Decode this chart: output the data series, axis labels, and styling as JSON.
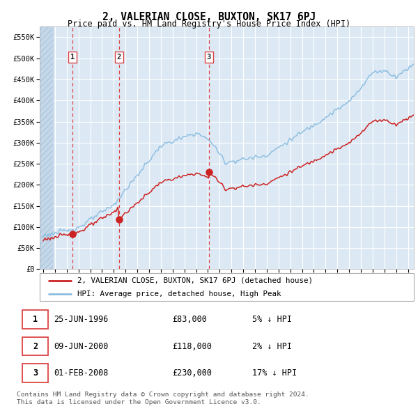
{
  "title": "2, VALERIAN CLOSE, BUXTON, SK17 6PJ",
  "subtitle": "Price paid vs. HM Land Registry's House Price Index (HPI)",
  "legend_line1": "2, VALERIAN CLOSE, BUXTON, SK17 6PJ (detached house)",
  "legend_line2": "HPI: Average price, detached house, High Peak",
  "transactions": [
    {
      "num": 1,
      "date": "25-JUN-1996",
      "price": 83000,
      "rel": "5% ↓ HPI",
      "x_year": 1996.48
    },
    {
      "num": 2,
      "date": "09-JUN-2000",
      "price": 118000,
      "rel": "2% ↓ HPI",
      "x_year": 2000.44
    },
    {
      "num": 3,
      "date": "01-FEB-2008",
      "price": 230000,
      "rel": "17% ↓ HPI",
      "x_year": 2008.08
    }
  ],
  "footer1": "Contains HM Land Registry data © Crown copyright and database right 2024.",
  "footer2": "This data is licensed under the Open Government Licence v3.0.",
  "hpi_color": "#8bbde0",
  "price_color": "#cc2222",
  "dashed_color": "#dd4444",
  "bg_color": "#dce9f5",
  "grid_color": "#ffffff",
  "ylim": [
    0,
    575000
  ],
  "yticks": [
    0,
    50000,
    100000,
    150000,
    200000,
    250000,
    300000,
    350000,
    400000,
    450000,
    500000,
    550000
  ],
  "xlim_start": 1993.7,
  "xlim_end": 2025.5
}
